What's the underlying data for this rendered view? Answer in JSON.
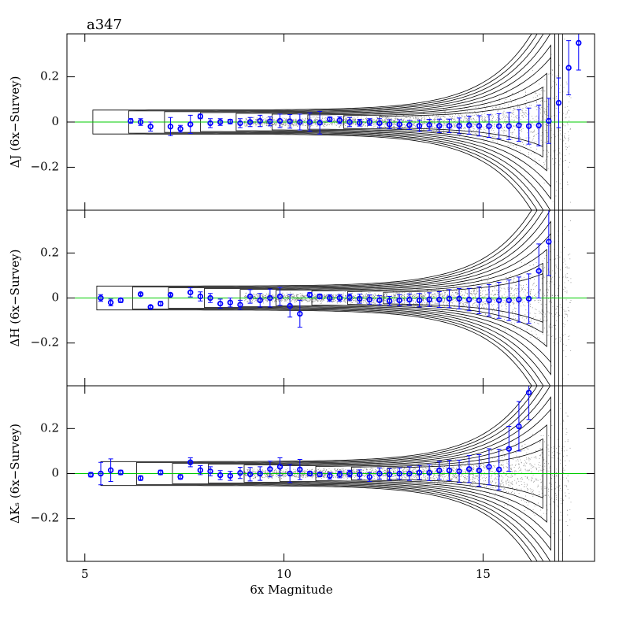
{
  "chart_data": [
    {
      "type": "scatter",
      "title": "a347",
      "ylabel": "ΔJ (6x−Survey)",
      "color": "#0000ff",
      "hline": 0,
      "hline_color": "#00cc00",
      "ylim": [
        -0.39,
        0.39
      ],
      "yticks": [
        {
          "value": -0.2,
          "label": "−0.2"
        },
        0,
        0.2
      ],
      "x": [
        6.15,
        6.4,
        6.65,
        7.15,
        7.4,
        7.65,
        7.9,
        8.15,
        8.4,
        8.65,
        8.9,
        9.15,
        9.4,
        9.65,
        9.9,
        10.15,
        10.4,
        10.65,
        10.9,
        11.15,
        11.4,
        11.65,
        11.9,
        12.15,
        12.4,
        12.65,
        12.9,
        13.15,
        13.4,
        13.65,
        13.9,
        14.15,
        14.4,
        14.65,
        14.9,
        15.15,
        15.4,
        15.65,
        15.9,
        16.15,
        16.4,
        16.65,
        16.9,
        17.15,
        17.4
      ],
      "values": [
        0.005,
        0,
        -0.02,
        -0.02,
        -0.03,
        -0.01,
        0.025,
        -0.005,
        0,
        0.002,
        -0.005,
        0,
        0.005,
        0.003,
        0.005,
        0.003,
        0,
        0,
        -0.003,
        0.012,
        0.008,
        0,
        -0.003,
        0,
        -0.005,
        -0.01,
        -0.01,
        -0.013,
        -0.017,
        -0.013,
        -0.017,
        -0.017,
        -0.017,
        -0.014,
        -0.017,
        -0.018,
        -0.018,
        -0.018,
        -0.015,
        -0.018,
        -0.015,
        0.005,
        0.085,
        0.24,
        0.35
      ],
      "errors": [
        0.01,
        0.015,
        0.02,
        0.04,
        0.015,
        0.04,
        0.01,
        0.02,
        0.015,
        0.01,
        0.02,
        0.02,
        0.025,
        0.02,
        0.03,
        0.03,
        0.035,
        0.04,
        0.05,
        0.01,
        0.015,
        0.02,
        0.015,
        0.015,
        0.02,
        0.02,
        0.02,
        0.02,
        0.025,
        0.025,
        0.03,
        0.03,
        0.035,
        0.04,
        0.045,
        0.05,
        0.055,
        0.06,
        0.07,
        0.08,
        0.09,
        0.1,
        0.11,
        0.12,
        0.12
      ]
    },
    {
      "type": "scatter",
      "ylabel": "ΔH (6x−Survey)",
      "color": "#0000ff",
      "hline": 0,
      "hline_color": "#00cc00",
      "ylim": [
        -0.39,
        0.39
      ],
      "yticks": [
        {
          "value": -0.2,
          "label": "−0.2"
        },
        0,
        0.2
      ],
      "x": [
        5.4,
        5.65,
        5.9,
        6.4,
        6.65,
        6.9,
        7.15,
        7.65,
        7.9,
        8.15,
        8.4,
        8.65,
        8.9,
        9.15,
        9.4,
        9.65,
        9.9,
        10.15,
        10.4,
        10.65,
        10.9,
        11.15,
        11.4,
        11.65,
        11.9,
        12.15,
        12.4,
        12.65,
        12.9,
        13.15,
        13.4,
        13.65,
        13.9,
        14.15,
        14.4,
        14.65,
        14.9,
        15.15,
        15.4,
        15.65,
        15.9,
        16.15,
        16.4,
        16.65
      ],
      "values": [
        0,
        -0.02,
        -0.01,
        0.017,
        -0.04,
        -0.025,
        0.014,
        0.025,
        0.007,
        0,
        -0.025,
        -0.02,
        -0.03,
        0.007,
        -0.01,
        0,
        0.007,
        -0.035,
        -0.07,
        0.014,
        0.007,
        0,
        0,
        0.003,
        -0.003,
        -0.007,
        -0.01,
        -0.013,
        -0.01,
        -0.007,
        -0.01,
        -0.007,
        -0.007,
        -0.003,
        -0.003,
        -0.007,
        -0.01,
        -0.01,
        -0.01,
        -0.01,
        -0.007,
        -0.003,
        0.12,
        0.25
      ],
      "errors": [
        0.015,
        0.015,
        0.01,
        0.005,
        0.005,
        0.01,
        0.005,
        0.02,
        0.02,
        0.02,
        0.02,
        0.02,
        0.02,
        0.03,
        0.03,
        0.04,
        0.04,
        0.05,
        0.06,
        0.01,
        0.01,
        0.015,
        0.015,
        0.015,
        0.02,
        0.02,
        0.02,
        0.02,
        0.025,
        0.025,
        0.03,
        0.03,
        0.035,
        0.04,
        0.045,
        0.05,
        0.06,
        0.07,
        0.08,
        0.09,
        0.1,
        0.11,
        0.12,
        0.15
      ]
    },
    {
      "type": "scatter",
      "ylabel": "ΔKₛ (6x−Survey)",
      "xlabel": "6x Magnitude",
      "color": "#0000ff",
      "hline": 0,
      "hline_color": "#00cc00",
      "xlim": [
        4.55,
        17.8
      ],
      "xticks": [
        5,
        10,
        15
      ],
      "ylim": [
        -0.39,
        0.39
      ],
      "yticks": [
        {
          "value": -0.2,
          "label": "−0.2"
        },
        0,
        0.2
      ],
      "x": [
        5.15,
        5.4,
        5.65,
        5.9,
        6.4,
        6.9,
        7.4,
        7.65,
        7.9,
        8.15,
        8.4,
        8.65,
        8.9,
        9.15,
        9.4,
        9.65,
        9.9,
        10.15,
        10.4,
        10.65,
        10.9,
        11.15,
        11.4,
        11.65,
        11.9,
        12.15,
        12.4,
        12.65,
        12.9,
        13.15,
        13.4,
        13.65,
        13.9,
        14.15,
        14.4,
        14.65,
        14.9,
        15.15,
        15.4,
        15.65,
        15.9,
        16.15
      ],
      "values": [
        -0.005,
        0,
        0.015,
        0.005,
        -0.02,
        0.005,
        -0.015,
        0.05,
        0.015,
        0.01,
        -0.007,
        -0.01,
        0.003,
        -0.003,
        0,
        0.02,
        0.03,
        0,
        0.018,
        0,
        -0.004,
        -0.01,
        -0.004,
        0,
        -0.004,
        -0.015,
        0,
        -0.004,
        0,
        0,
        0.004,
        0.004,
        0.014,
        0.014,
        0.01,
        0.02,
        0.014,
        0.03,
        0.018,
        0.11,
        0.21,
        0.36
      ],
      "errors": [
        0.01,
        0.05,
        0.05,
        0.01,
        0.01,
        0.01,
        0.01,
        0.02,
        0.02,
        0.02,
        0.02,
        0.02,
        0.025,
        0.03,
        0.03,
        0.035,
        0.04,
        0.04,
        0.045,
        0.01,
        0.01,
        0.015,
        0.015,
        0.015,
        0.02,
        0.02,
        0.025,
        0.025,
        0.025,
        0.03,
        0.03,
        0.035,
        0.04,
        0.045,
        0.05,
        0.06,
        0.07,
        0.08,
        0.09,
        0.1,
        0.11,
        0.12
      ]
    }
  ]
}
